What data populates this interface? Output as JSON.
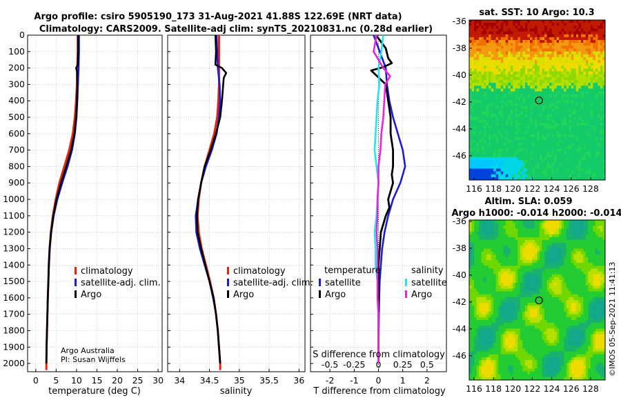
{
  "title_line1": "Argo profile: csiro 5905190_173 31-Aug-2021 41.88S 122.69E (NRT data)",
  "title_line2": "Climatology: CARS2009. Satellite-adj clim: synTS_20210831.nc (0.28d earlier)",
  "credit_line1": "Argo Australia",
  "credit_line2": "PI: Susan Wijffels",
  "stamp": "©IMOS 05-Sep-2021 11:41:13",
  "colors": {
    "climatology": "#e8220c",
    "satellite": "#1a1adb",
    "argo": "#000000",
    "sat_salinity": "#22e5ee",
    "argo_salinity": "#ee22dd"
  },
  "chart_data": [
    {
      "type": "line",
      "id": "temperature",
      "xlabel": "temperature (deg C)",
      "ylabel": "",
      "xlim": [
        -2,
        31
      ],
      "ylim": [
        2050,
        0
      ],
      "xticks": [
        0,
        5,
        10,
        15,
        20,
        25,
        30
      ],
      "yticks": [
        0,
        100,
        200,
        300,
        400,
        500,
        600,
        700,
        800,
        900,
        1000,
        1100,
        1200,
        1300,
        1400,
        1500,
        1600,
        1700,
        1800,
        1900,
        2000
      ],
      "legend": [
        "climatology",
        "satellite-adj. clim.",
        "Argo"
      ],
      "series": [
        {
          "name": "climatology",
          "color_key": "climatology",
          "depth": [
            0,
            100,
            200,
            300,
            400,
            500,
            600,
            700,
            800,
            900,
            1000,
            1100,
            1200,
            1300,
            1400,
            1500,
            1600,
            1700,
            1800,
            1900,
            2000,
            2040
          ],
          "values": [
            10.3,
            10.3,
            10.2,
            10.1,
            9.9,
            9.6,
            9.1,
            8.2,
            7.0,
            5.8,
            4.9,
            4.2,
            3.7,
            3.4,
            3.2,
            3.1,
            2.95,
            2.85,
            2.75,
            2.65,
            2.6,
            2.6
          ]
        },
        {
          "name": "satellite-adj. clim.",
          "color_key": "satellite",
          "depth": [
            0,
            100,
            200,
            300,
            400,
            500,
            600,
            700,
            800,
            900,
            1000,
            1100,
            1200,
            1300,
            1400,
            1500,
            1600,
            1700,
            1800,
            1900,
            2000
          ],
          "values": [
            10.6,
            10.6,
            10.5,
            10.35,
            10.2,
            10.0,
            9.6,
            8.9,
            7.8,
            6.5,
            5.3,
            4.4,
            3.8,
            3.45,
            3.25,
            3.1,
            2.95,
            2.85,
            2.75,
            2.65,
            2.6
          ]
        },
        {
          "name": "Argo",
          "color_key": "argo",
          "depth": [
            0,
            100,
            180,
            200,
            220,
            300,
            400,
            500,
            600,
            700,
            800,
            900,
            1000,
            1100,
            1200,
            1300,
            1400,
            1500,
            1600,
            1700,
            1800,
            1900,
            2000
          ],
          "values": [
            10.4,
            10.4,
            10.3,
            9.9,
            10.1,
            10.2,
            10.1,
            9.9,
            9.5,
            8.7,
            7.5,
            6.2,
            5.1,
            4.3,
            3.75,
            3.4,
            3.2,
            3.1,
            2.95,
            2.85,
            2.75,
            2.65,
            2.6
          ]
        }
      ]
    },
    {
      "type": "line",
      "id": "salinity",
      "xlabel": "salinity",
      "ylabel": "",
      "xlim": [
        33.8,
        36.1
      ],
      "ylim": [
        2050,
        0
      ],
      "xticks": [
        34,
        34.5,
        35,
        35.5,
        36
      ],
      "legend": [
        "climatology",
        "satellite-adj. clim.",
        "Argo"
      ],
      "series": [
        {
          "name": "climatology",
          "color_key": "climatology",
          "depth": [
            0,
            100,
            200,
            300,
            400,
            500,
            600,
            700,
            800,
            900,
            1000,
            1100,
            1200,
            1300,
            1400,
            1500,
            1600,
            1700,
            1800,
            1900,
            2000,
            2040
          ],
          "values": [
            34.66,
            34.66,
            34.66,
            34.66,
            34.65,
            34.63,
            34.58,
            34.5,
            34.42,
            34.36,
            34.32,
            34.3,
            34.32,
            34.37,
            34.44,
            34.51,
            34.57,
            34.61,
            34.64,
            34.66,
            34.68,
            34.68
          ]
        },
        {
          "name": "satellite-adj. clim.",
          "color_key": "satellite",
          "depth": [
            0,
            100,
            200,
            300,
            400,
            500,
            600,
            700,
            800,
            900,
            1000,
            1100,
            1200,
            1300,
            1400,
            1500,
            1600,
            1700,
            1800,
            1900,
            2000
          ],
          "values": [
            34.62,
            34.63,
            34.64,
            34.67,
            34.68,
            34.66,
            34.62,
            34.54,
            34.44,
            34.36,
            34.31,
            34.27,
            34.28,
            34.34,
            34.42,
            34.5,
            34.56,
            34.61,
            34.64,
            34.66,
            34.68
          ]
        },
        {
          "name": "Argo",
          "color_key": "argo",
          "depth": [
            0,
            100,
            180,
            200,
            230,
            260,
            300,
            400,
            500,
            600,
            700,
            800,
            900,
            1000,
            1100,
            1200,
            1300,
            1400,
            1500,
            1600,
            1700,
            1800,
            1900,
            2000
          ],
          "values": [
            34.6,
            34.61,
            34.6,
            34.71,
            34.78,
            34.74,
            34.73,
            34.71,
            34.68,
            34.61,
            34.52,
            34.42,
            34.36,
            34.31,
            34.29,
            34.3,
            34.36,
            34.43,
            34.5,
            34.57,
            34.61,
            34.64,
            34.66,
            34.68
          ]
        }
      ]
    },
    {
      "type": "line",
      "id": "difference",
      "xlabel": "T difference from climatology",
      "xlabel_top": "S difference from climatology",
      "xlim": [
        -2.8,
        2.8
      ],
      "ylim": [
        2050,
        0
      ],
      "xticks": [
        -2,
        -1,
        0,
        1,
        2
      ],
      "xticks_top": [
        -0.5,
        -0.25,
        0,
        0.25,
        0.5
      ],
      "legend_left_title": "temperature",
      "legend_right_title": "salinity",
      "legend_left": [
        "satellite",
        "Argo"
      ],
      "legend_right": [
        "satellite",
        "Argo"
      ],
      "series": [
        {
          "name": "temperature satellite",
          "color_key": "satellite",
          "depth": [
            0,
            80,
            200,
            300,
            400,
            500,
            600,
            700,
            800,
            900,
            1000,
            1100,
            1200,
            1300,
            1400,
            1500,
            1600,
            1700,
            1800,
            1900,
            2000
          ],
          "values": [
            -0.2,
            0.0,
            0.3,
            0.35,
            0.45,
            0.6,
            0.8,
            1.0,
            1.1,
            0.9,
            0.6,
            0.4,
            0.25,
            0.15,
            0.1,
            0.05,
            0.03,
            0.02,
            0.01,
            0.0,
            0.0
          ]
        },
        {
          "name": "temperature Argo",
          "color_key": "argo",
          "depth": [
            0,
            80,
            140,
            170,
            195,
            215,
            300,
            400,
            500,
            600,
            700,
            800,
            850,
            900,
            950,
            1000,
            1050,
            1100,
            1200,
            1300,
            1400,
            1500,
            1600,
            1700,
            1800,
            1900,
            2000
          ],
          "values": [
            -0.1,
            0.3,
            0.4,
            0.55,
            0.2,
            -0.3,
            0.3,
            0.4,
            0.5,
            0.5,
            0.6,
            0.6,
            0.55,
            0.6,
            0.5,
            0.4,
            0.45,
            0.3,
            0.1,
            0.05,
            0.0,
            0.0,
            0.0,
            0.0,
            0.0,
            0.0,
            0.0
          ]
        },
        {
          "name": "salinity satellite",
          "color_key": "sat_salinity",
          "depth": [
            0,
            100,
            200,
            300,
            400,
            500,
            600,
            700,
            800,
            900,
            1000,
            1100,
            1200,
            1300,
            1400,
            1500,
            1600,
            1700,
            1800,
            1900,
            2000
          ],
          "values": [
            0.05,
            0.03,
            0.0,
            0.01,
            -0.01,
            -0.02,
            -0.03,
            -0.04,
            -0.02,
            0.0,
            -0.01,
            -0.02,
            -0.04,
            -0.03,
            -0.03,
            -0.01,
            -0.01,
            0.0,
            0.0,
            0.0,
            0.0
          ]
        },
        {
          "name": "salinity Argo",
          "color_key": "argo_salinity",
          "depth": [
            0,
            100,
            200,
            250,
            300,
            400,
            500,
            600,
            700,
            800,
            900,
            1000,
            1100,
            1200,
            1300,
            1400,
            1500,
            1600,
            1700,
            1800,
            1900,
            2000
          ],
          "values": [
            -0.02,
            -0.05,
            0.05,
            0.12,
            0.07,
            0.06,
            0.05,
            0.03,
            0.02,
            0.0,
            0.0,
            -0.01,
            -0.01,
            -0.02,
            -0.01,
            -0.01,
            -0.01,
            -0.01,
            0.0,
            0.0,
            0.0,
            0.0
          ]
        }
      ]
    },
    {
      "type": "heatmap",
      "id": "sst_map",
      "title": "sat. SST: 10 Argo: 10.3",
      "xlim": [
        115.5,
        129.5
      ],
      "ylim": [
        -47.8,
        -35.9
      ],
      "xticks": [
        116,
        118,
        120,
        122,
        124,
        126,
        128
      ],
      "yticks": [
        -36,
        -38,
        -40,
        -42,
        -44,
        -46
      ],
      "marker": {
        "lon": 122.69,
        "lat": -41.88
      }
    },
    {
      "type": "heatmap",
      "id": "sla_map",
      "title_line1": "Altim. SLA: 0.059",
      "title_line2": "Argo h1000: -0.014 h2000: -0.014",
      "xlim": [
        115.5,
        129.5
      ],
      "ylim": [
        -47.8,
        -35.9
      ],
      "xticks": [
        116,
        118,
        120,
        122,
        124,
        126,
        128
      ],
      "yticks": [
        -36,
        -38,
        -40,
        -42,
        -44,
        -46
      ],
      "marker": {
        "lon": 122.69,
        "lat": -41.88
      }
    }
  ]
}
